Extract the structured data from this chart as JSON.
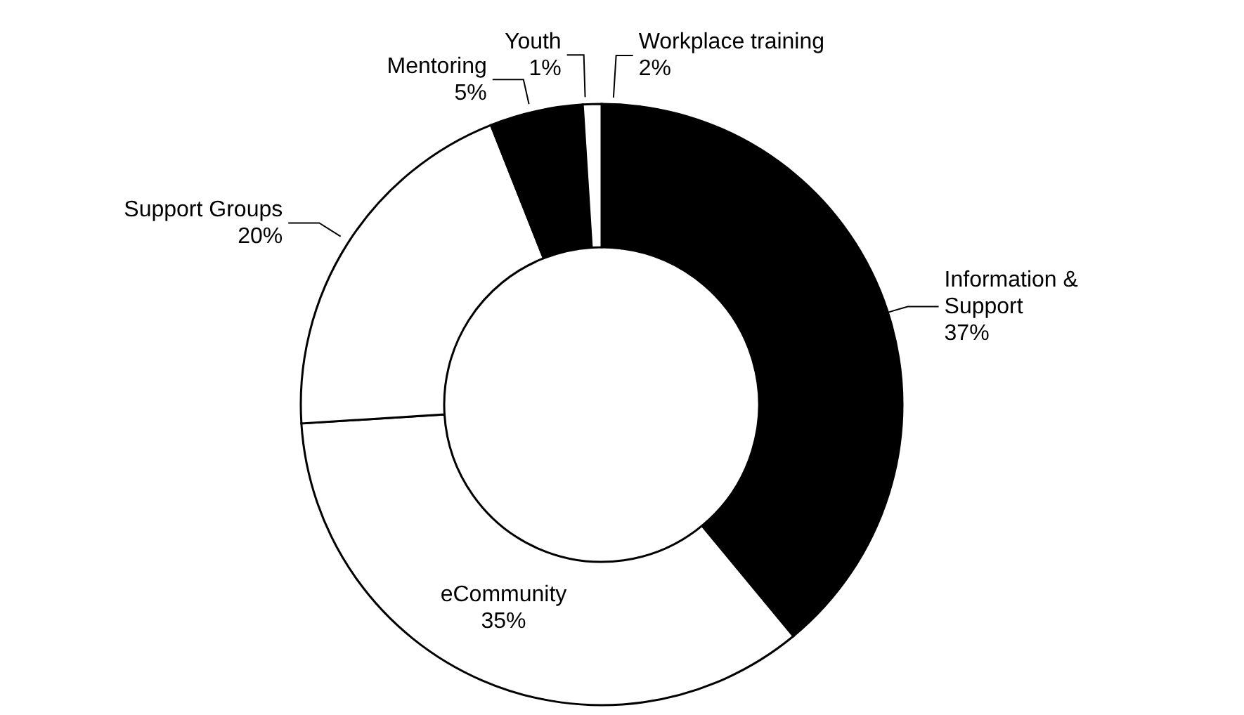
{
  "chart_data": {
    "type": "donut",
    "categories": [
      "Workplace training",
      "Information & Support",
      "eCommunity",
      "Support Groups",
      "Mentoring",
      "Youth"
    ],
    "values": [
      2,
      37,
      35,
      20,
      5,
      1
    ],
    "value_labels": [
      "2%",
      "37%",
      "35%",
      "20%",
      "5%",
      "1%"
    ],
    "colors": [
      "#000000",
      "#000000",
      "#ffffff",
      "#ffffff",
      "#000000",
      "#ffffff"
    ]
  }
}
